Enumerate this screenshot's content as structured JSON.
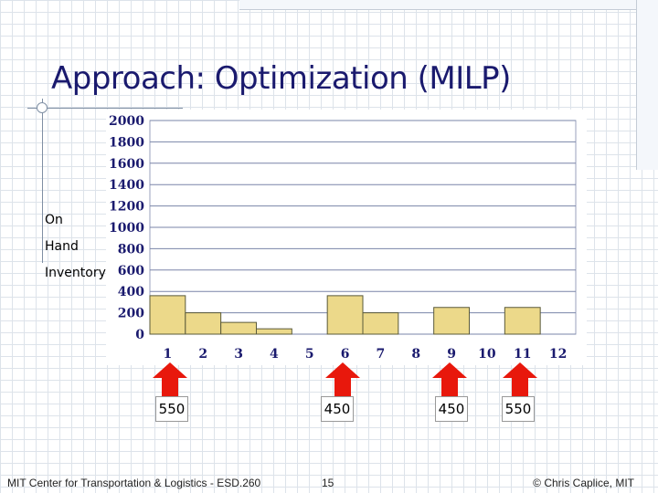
{
  "slide": {
    "title": "Approach: Optimization (MILP)",
    "side_label_lines": [
      "On",
      "Hand",
      "Inventory"
    ],
    "order_quantities": [
      "550",
      "450",
      "450",
      "550"
    ],
    "footer_left": "MIT Center for Transportation & Logistics - ESD.260",
    "page_number": "15",
    "footer_right": "© Chris Caplice, MIT"
  },
  "colors": {
    "title": "#1a1a6e",
    "bar_fill": "#ecd98a",
    "bar_stroke": "#5a5a3a",
    "arrow": "#e8180c",
    "axis_text": "#1a1a6e",
    "plot_grid": "#7a84a8"
  },
  "chart_data": {
    "type": "bar",
    "categories": [
      "1",
      "2",
      "3",
      "4",
      "5",
      "6",
      "7",
      "8",
      "9",
      "10",
      "11",
      "12"
    ],
    "values": [
      360,
      200,
      110,
      50,
      0,
      360,
      200,
      0,
      250,
      0,
      250,
      0
    ],
    "order_periods": [
      "1",
      "6",
      "9",
      "11"
    ],
    "ylim": [
      0,
      2000
    ],
    "yticks": [
      0,
      200,
      400,
      600,
      800,
      1000,
      1200,
      1400,
      1600,
      1800,
      2000
    ],
    "grid": true,
    "ylabel": "On Hand Inventory",
    "xlabel": ""
  }
}
